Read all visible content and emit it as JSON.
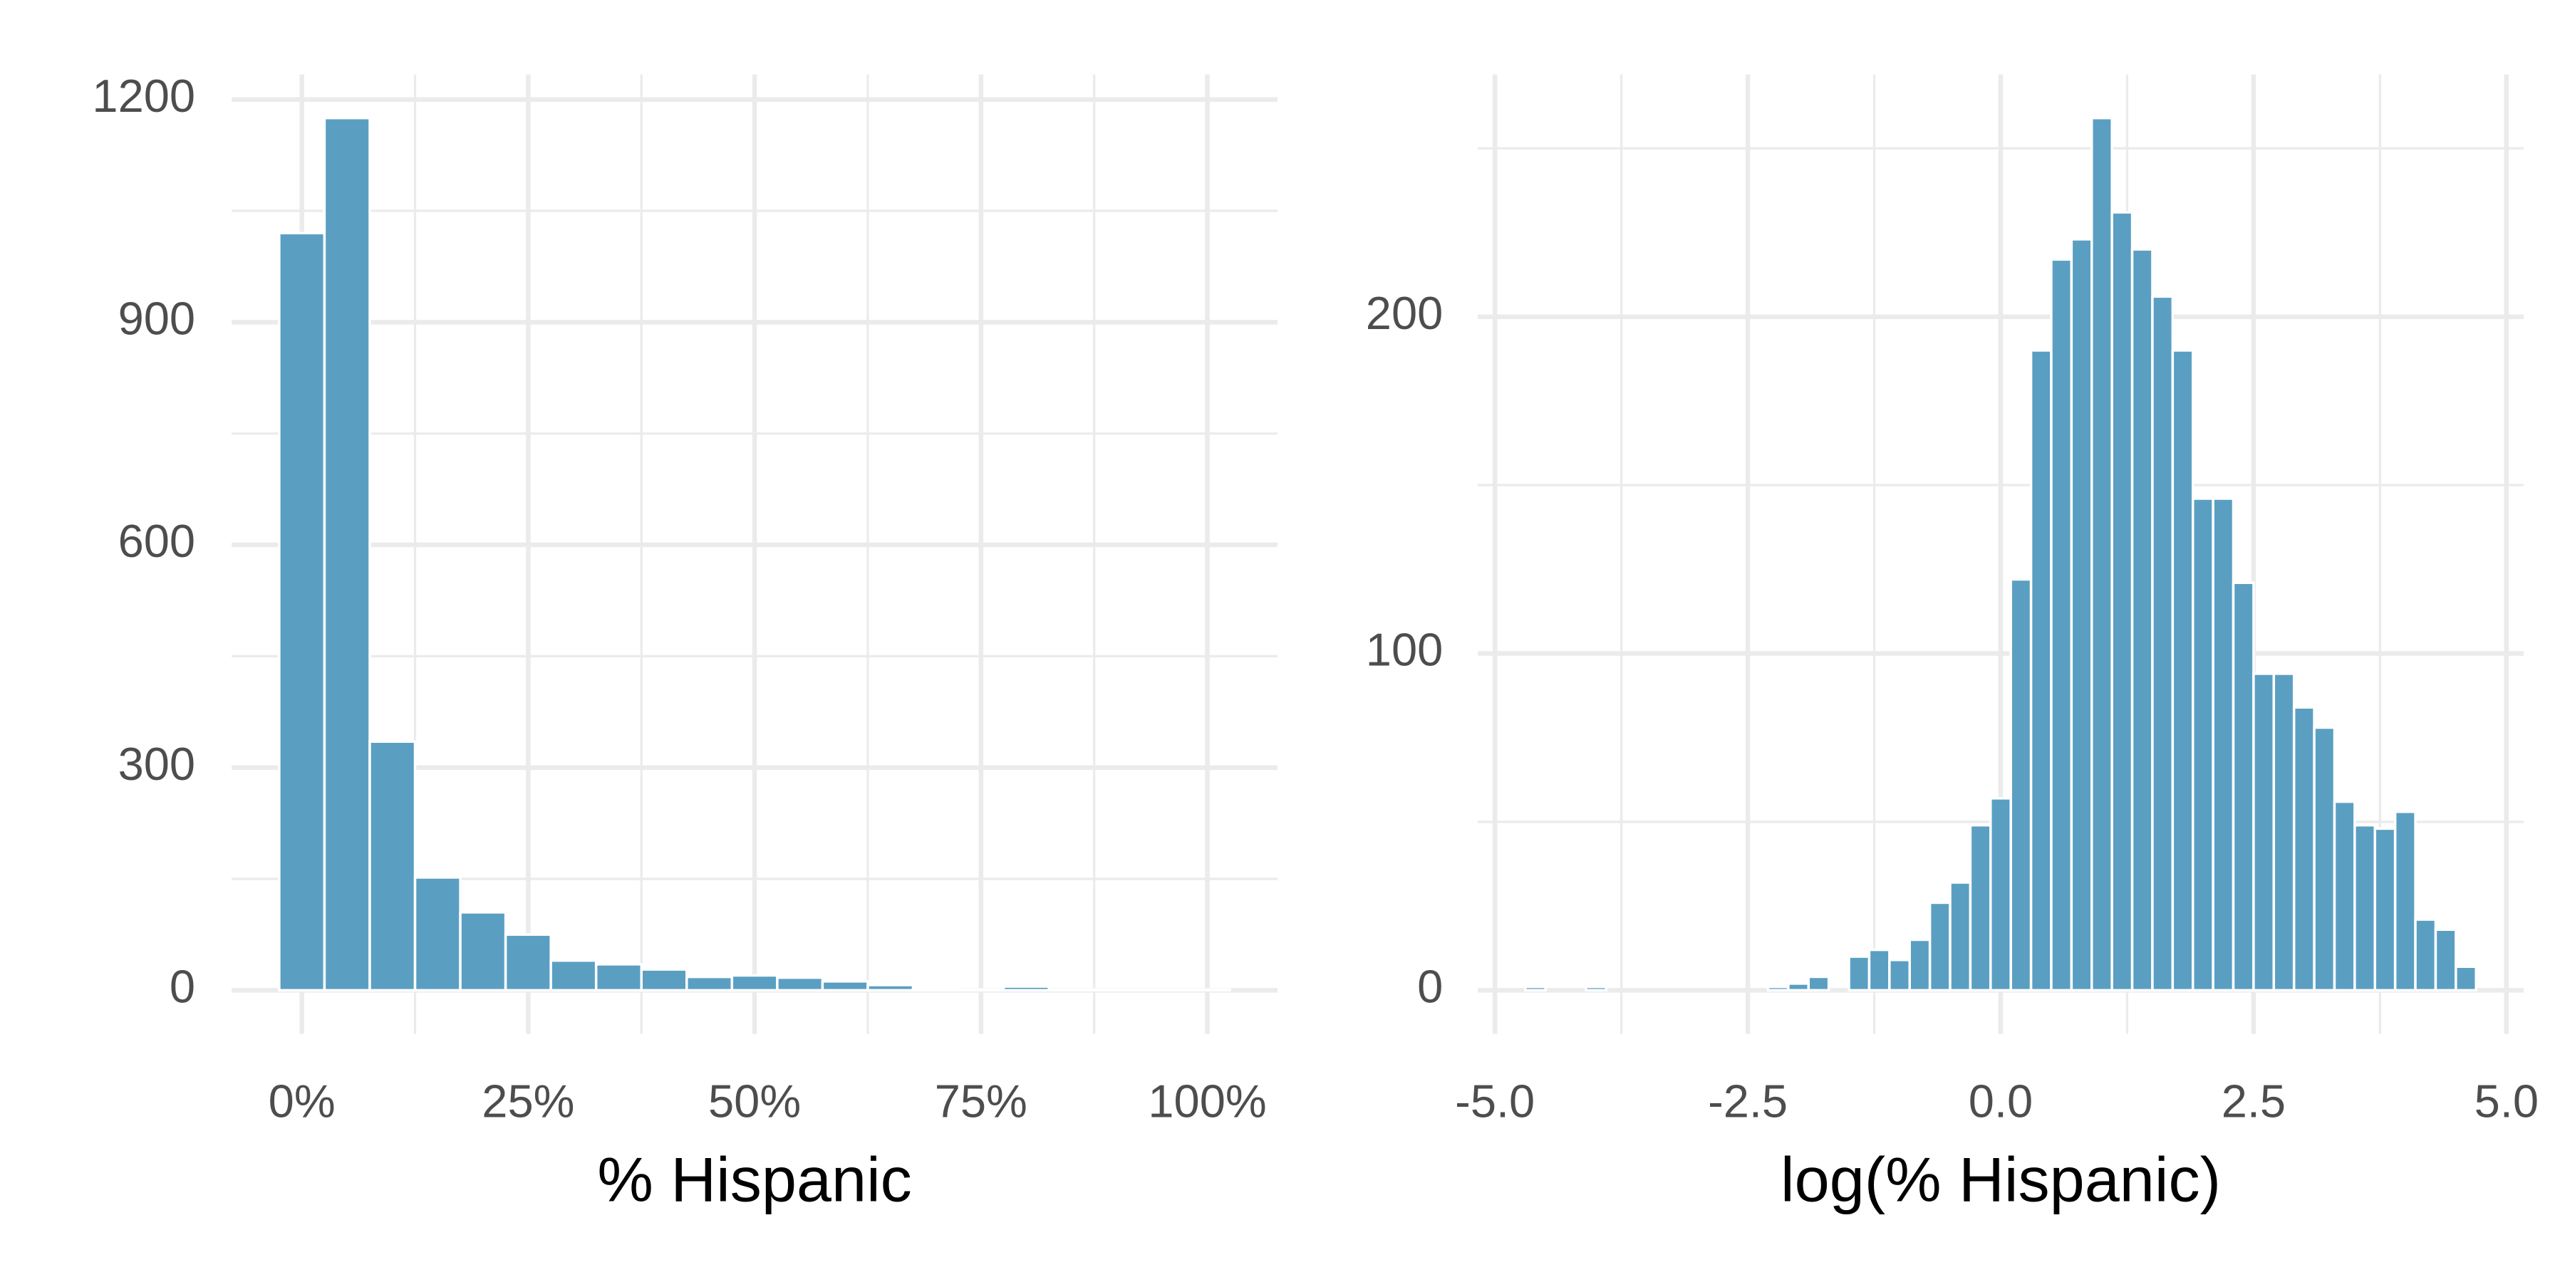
{
  "chart_data": [
    {
      "type": "histogram",
      "xlabel": "% Hispanic",
      "color": "#5a9fc2",
      "bins": [
        -2.5,
        2.5,
        7.5,
        12.5,
        17.5,
        22.5,
        27.5,
        32.5,
        37.5,
        42.5,
        47.5,
        52.5,
        57.5,
        62.5,
        67.5,
        72.5,
        77.5,
        82.5,
        87.5,
        92.5,
        97.5,
        102.5
      ],
      "counts": [
        1020,
        1175,
        335,
        152,
        105,
        75,
        40,
        35,
        28,
        18,
        20,
        17,
        12,
        7,
        2,
        1,
        5,
        1,
        1,
        1,
        1
      ],
      "xlim": [
        -7.75,
        107.75
      ],
      "ylim": [
        -58.75,
        1233.75
      ],
      "xticks": [
        {
          "value": 0,
          "label": "0%"
        },
        {
          "value": 25,
          "label": "25%"
        },
        {
          "value": 50,
          "label": "50%"
        },
        {
          "value": 75,
          "label": "75%"
        },
        {
          "value": 100,
          "label": "100%"
        }
      ],
      "yticks": [
        0,
        300,
        600,
        900,
        1200
      ],
      "minor_xticks": [
        12.5,
        37.5,
        62.5,
        87.5
      ],
      "minor_yticks": [
        150,
        450,
        750,
        1050
      ],
      "grid": true
    },
    {
      "type": "histogram",
      "xlabel": "log(% Hispanic)",
      "color": "#5a9fc2",
      "bins": [
        -4.7,
        -4.5,
        -4.3,
        -4.1,
        -3.9,
        -3.7,
        -3.5,
        -3.3,
        -3.1,
        -2.9,
        -2.7,
        -2.5,
        -2.3,
        -2.1,
        -1.9,
        -1.7,
        -1.5,
        -1.3,
        -1.1,
        -0.9,
        -0.7,
        -0.5,
        -0.3,
        -0.1,
        0.1,
        0.3,
        0.5,
        0.7,
        0.9,
        1.1,
        1.3,
        1.5,
        1.7,
        1.9,
        2.1,
        2.3,
        2.5,
        2.7,
        2.9,
        3.1,
        3.3,
        3.5,
        3.7,
        3.9,
        4.1,
        4.3,
        4.5,
        4.7
      ],
      "counts": [
        1,
        0,
        0,
        1,
        0,
        0,
        0,
        0,
        0,
        0,
        0,
        0,
        1,
        2,
        4,
        0,
        10,
        12,
        9,
        15,
        26,
        32,
        49,
        57,
        122,
        190,
        217,
        223,
        259,
        231,
        220,
        206,
        190,
        146,
        146,
        121,
        94,
        94,
        84,
        78,
        56,
        49,
        48,
        53,
        21,
        18,
        7
      ],
      "xlim": [
        -5.17,
        5.17
      ],
      "ylim": [
        -12.95,
        271.95
      ],
      "xticks": [
        {
          "value": -5,
          "label": "-5.0"
        },
        -2.5,
        {
          "value": 0,
          "label": "0.0"
        },
        2.5,
        {
          "value": 5,
          "label": "5.0"
        }
      ],
      "yticks": [
        0,
        100,
        200
      ],
      "minor_xticks": [
        -3.75,
        -1.25,
        1.25,
        3.75
      ],
      "minor_yticks": [
        50,
        150,
        250
      ],
      "grid": true
    }
  ]
}
